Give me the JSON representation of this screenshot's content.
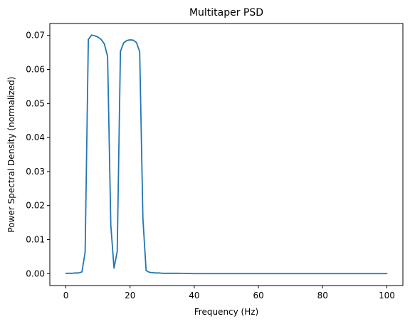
{
  "chart_data": {
    "type": "line",
    "title": "Multitaper PSD",
    "xlabel": "Frequency (Hz)",
    "ylabel": "Power Spectral Density (normalized)",
    "xlim": [
      -5,
      105
    ],
    "ylim": [
      -0.0035,
      0.0735
    ],
    "x_ticks": [
      0,
      20,
      40,
      60,
      80,
      100
    ],
    "x_tick_labels": [
      "0",
      "20",
      "40",
      "60",
      "80",
      "100"
    ],
    "y_ticks": [
      0.0,
      0.01,
      0.02,
      0.03,
      0.04,
      0.05,
      0.06,
      0.07
    ],
    "y_tick_labels": [
      "0.00",
      "0.01",
      "0.02",
      "0.03",
      "0.04",
      "0.05",
      "0.06",
      "0.07"
    ],
    "grid": false,
    "series": [
      {
        "color": "#1f77b4",
        "x": [
          0,
          1,
          2,
          3,
          4,
          5,
          6,
          7,
          8,
          9,
          10,
          11,
          12,
          13,
          14,
          15,
          16,
          17,
          18,
          19,
          20,
          21,
          22,
          23,
          24,
          25,
          26,
          27,
          28,
          29,
          30,
          35,
          40,
          50,
          60,
          70,
          80,
          90,
          100
        ],
        "y": [
          0.0001,
          0.0001,
          0.0001,
          0.0002,
          0.0002,
          0.0005,
          0.0063,
          0.0688,
          0.0701,
          0.0699,
          0.0695,
          0.0688,
          0.0675,
          0.0638,
          0.0143,
          0.0016,
          0.0065,
          0.0653,
          0.0678,
          0.0685,
          0.0687,
          0.0686,
          0.0679,
          0.0652,
          0.0162,
          0.0009,
          0.0004,
          0.0003,
          0.0002,
          0.0002,
          0.0001,
          0.0001,
          0.0,
          0.0,
          0.0,
          0.0,
          0.0,
          0.0,
          0.0
        ]
      }
    ]
  }
}
